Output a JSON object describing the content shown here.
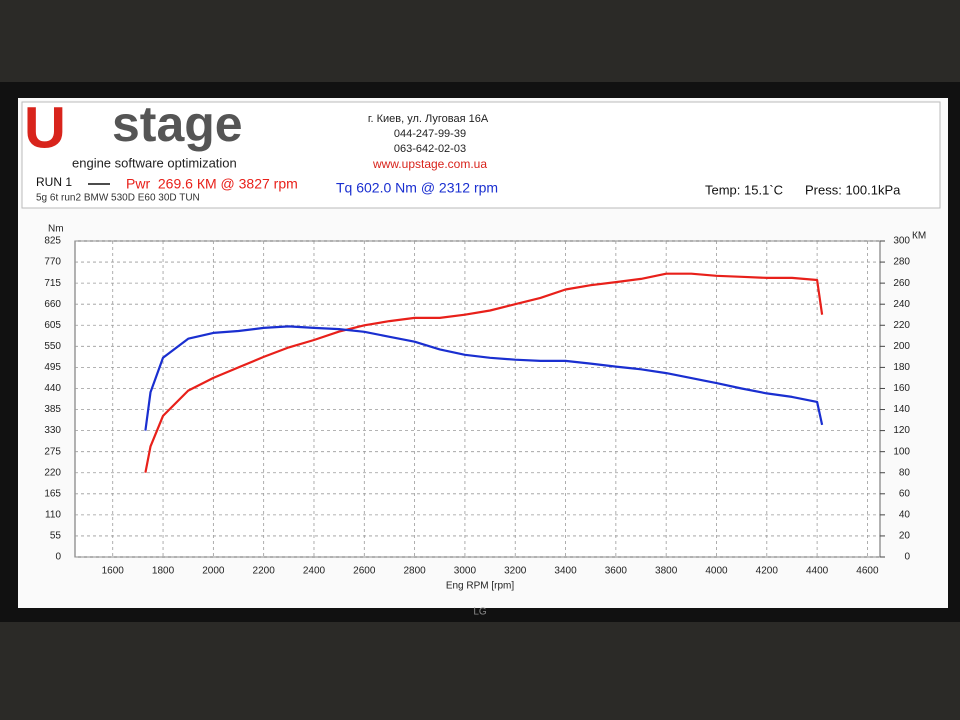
{
  "header": {
    "logo_mark": "U",
    "logo_text": "stage",
    "tagline": "engine software optimization",
    "address": "г. Киев, ул. Луговая 16А",
    "phone_1": "044-247-99-39",
    "phone_2": "063-642-02-03",
    "website": "www.upstage.com.ua",
    "run": "RUN 1",
    "temp": "Temp: 15.1`C",
    "press": "Press: 100.1kPa",
    "description": "5g 6t run2 BMW 530D E60 30D TUN"
  },
  "monitor": {
    "brand": "LG"
  },
  "chart_data": {
    "type": "line",
    "y_label": "Nm",
    "y2_label": "КМ",
    "x_label": "Eng RPM [rpm]",
    "grid": true,
    "xlim": [
      1450,
      4650
    ],
    "xticks": [
      1600,
      1800,
      2000,
      2200,
      2400,
      2600,
      2800,
      3000,
      3200,
      3400,
      3600,
      3800,
      4000,
      4200,
      4400,
      4600
    ],
    "ylim": [
      0,
      825
    ],
    "yticks": [
      0,
      55,
      110,
      165,
      220,
      275,
      330,
      385,
      440,
      495,
      550,
      605,
      660,
      715,
      770,
      825
    ],
    "y2lim": [
      0,
      300
    ],
    "y2ticks": [
      0,
      20,
      40,
      60,
      80,
      100,
      120,
      140,
      160,
      180,
      200,
      220,
      240,
      260,
      280,
      300
    ],
    "x": [
      1730,
      1750,
      1800,
      1900,
      2000,
      2100,
      2200,
      2300,
      2400,
      2500,
      2600,
      2700,
      2800,
      2900,
      3000,
      3100,
      3200,
      3300,
      3400,
      3500,
      3600,
      3700,
      3800,
      3900,
      4000,
      4100,
      4200,
      4300,
      4400,
      4420
    ],
    "series": [
      {
        "name": "Pwr  269.6 КМ @ 3827 rpm",
        "color": "#e8201a",
        "axis": "y2",
        "values": [
          80,
          105,
          134,
          158,
          170,
          180,
          190,
          199,
          206,
          214,
          220,
          224,
          227,
          227,
          230,
          234,
          240,
          246,
          254,
          258,
          261,
          264,
          269,
          269,
          267,
          266,
          265,
          265,
          263,
          230
        ]
      },
      {
        "name": "Tq 602.0 Nm @ 2312 rpm",
        "color": "#1a2fd0",
        "values": [
          330,
          430,
          520,
          570,
          585,
          590,
          598,
          602,
          598,
          595,
          588,
          575,
          562,
          542,
          528,
          520,
          515,
          512,
          512,
          505,
          497,
          490,
          480,
          467,
          454,
          440,
          427,
          418,
          405,
          345
        ]
      }
    ]
  }
}
